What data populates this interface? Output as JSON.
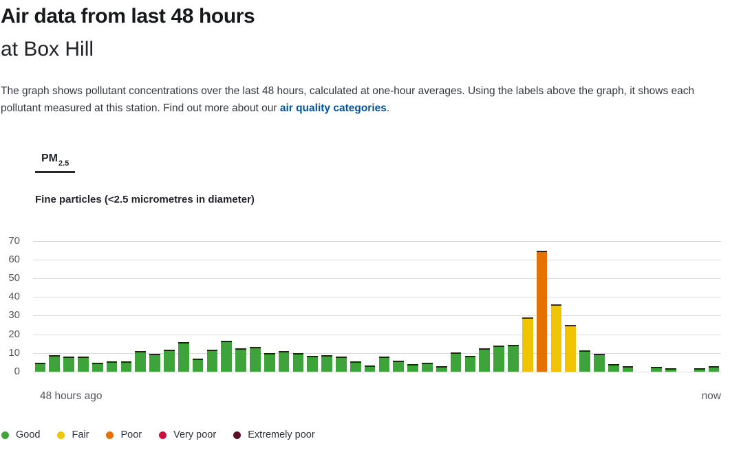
{
  "header": {
    "title": "Air data from last 48 hours",
    "subtitle": "at Box Hill",
    "description_before_link": "The graph shows pollutant concentrations over the last 48 hours, calculated at one-hour averages. Using the labels above the graph, it shows each pollutant measured at this station. Find out more about our ",
    "link_text": "air quality categories",
    "description_after_link": "."
  },
  "tab": {
    "label_main": "PM",
    "label_sub": "2.5",
    "active": true
  },
  "pollutant_description": "Fine particles (<2.5 micrometres in diameter)",
  "chart_data": {
    "type": "bar",
    "title": "PM2.5 one-hour averages, last 48 hours at Box Hill",
    "xlabel": "",
    "ylabel": "",
    "ylim": [
      0,
      70
    ],
    "yticks": [
      0,
      10,
      20,
      30,
      40,
      50,
      60,
      70
    ],
    "grid": true,
    "x_start_label": "48 hours ago",
    "x_end_label": "now",
    "values": [
      5,
      9,
      8,
      8,
      5,
      5.5,
      5.5,
      11,
      9.5,
      12,
      16,
      7,
      12,
      16.5,
      12.5,
      13.5,
      10,
      11,
      10,
      8.5,
      9,
      8,
      5.5,
      3.5,
      8,
      6,
      4,
      5,
      3,
      10.5,
      8.5,
      12.5,
      14,
      14.5,
      29,
      65,
      36,
      25,
      11.5,
      9.5,
      4,
      3,
      null,
      2.5,
      2,
      null,
      2,
      3
    ],
    "bar_categories": [
      "good",
      "good",
      "good",
      "good",
      "good",
      "good",
      "good",
      "good",
      "good",
      "good",
      "good",
      "good",
      "good",
      "good",
      "good",
      "good",
      "good",
      "good",
      "good",
      "good",
      "good",
      "good",
      "good",
      "good",
      "good",
      "good",
      "good",
      "good",
      "good",
      "good",
      "good",
      "good",
      "good",
      "good",
      "fair",
      "poor",
      "fair",
      "fair",
      "good",
      "good",
      "good",
      "good",
      null,
      "good",
      "good",
      null,
      "good",
      "good"
    ]
  },
  "category_colors": {
    "good": "#3FA33C",
    "fair": "#EFC400",
    "poor": "#E57200",
    "very_poor": "#C8103A",
    "extremely_poor": "#5A0E20"
  },
  "legend": {
    "items": [
      {
        "label": "Good",
        "color_key": "good"
      },
      {
        "label": "Fair",
        "color_key": "fair"
      },
      {
        "label": "Poor",
        "color_key": "poor"
      },
      {
        "label": "Very poor",
        "color_key": "very_poor"
      },
      {
        "label": "Extremely poor",
        "color_key": "extremely_poor"
      }
    ]
  },
  "colors": {
    "link": "#00529b",
    "gridline": "#dadbe0"
  }
}
